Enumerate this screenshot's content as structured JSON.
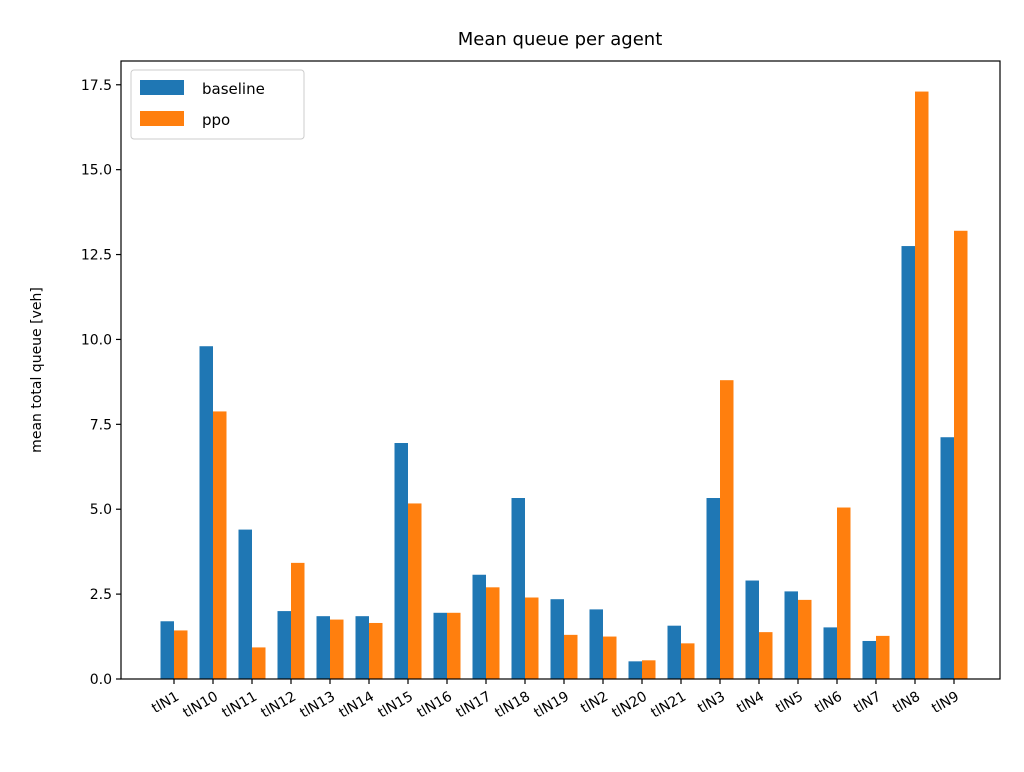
{
  "chart_data": {
    "type": "bar",
    "title": "Mean queue per agent",
    "xlabel": "",
    "ylabel": "mean total queue [veh]",
    "categories": [
      "tlN1",
      "tlN10",
      "tlN11",
      "tlN12",
      "tlN13",
      "tlN14",
      "tlN15",
      "tlN16",
      "tlN17",
      "tlN18",
      "tlN19",
      "tlN2",
      "tlN20",
      "tlN21",
      "tlN3",
      "tlN4",
      "tlN5",
      "tlN6",
      "tlN7",
      "tlN8",
      "tlN9"
    ],
    "series": [
      {
        "name": "baseline",
        "color": "#1f77b4",
        "values": [
          1.7,
          9.8,
          4.4,
          2.0,
          1.85,
          1.85,
          6.95,
          1.95,
          3.07,
          5.33,
          2.35,
          2.05,
          0.52,
          1.57,
          5.33,
          2.9,
          2.58,
          1.52,
          1.12,
          12.75,
          7.12
        ]
      },
      {
        "name": "ppo",
        "color": "#ff7f0e",
        "values": [
          1.43,
          7.88,
          0.93,
          3.42,
          1.75,
          1.65,
          5.17,
          1.95,
          2.7,
          2.4,
          1.3,
          1.25,
          0.55,
          1.05,
          8.8,
          1.38,
          2.33,
          5.05,
          1.27,
          17.3,
          13.2
        ]
      }
    ],
    "ylim": [
      0,
      18.2
    ],
    "yticks": [
      0.0,
      2.5,
      5.0,
      7.5,
      10.0,
      12.5,
      15.0,
      17.5
    ],
    "ytick_labels": [
      "0.0",
      "2.5",
      "5.0",
      "7.5",
      "10.0",
      "12.5",
      "15.0",
      "17.5"
    ],
    "legend_position": "upper-left",
    "grid": false,
    "xtick_rotation": 30
  }
}
